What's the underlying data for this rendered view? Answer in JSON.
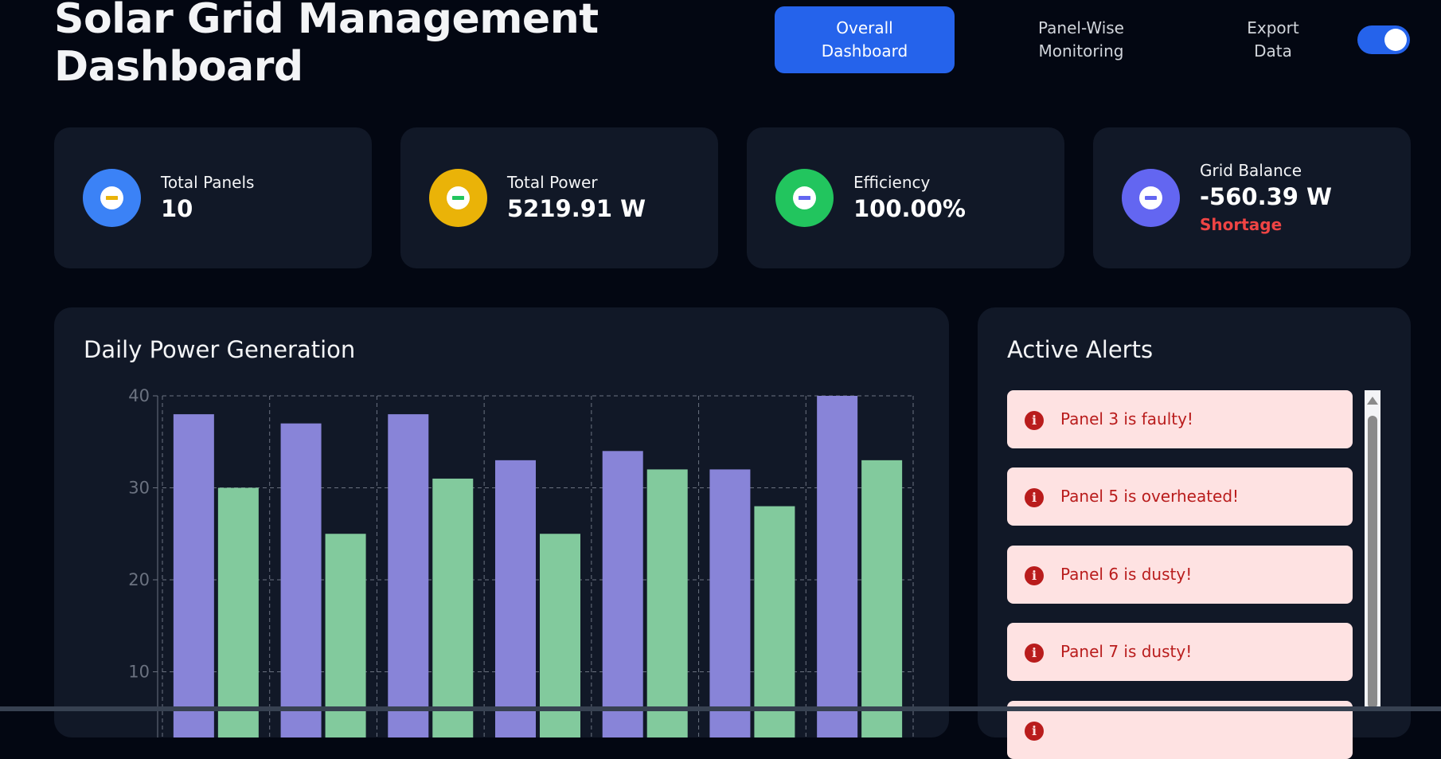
{
  "header": {
    "title": "Solar Grid Management Dashboard",
    "nav": [
      {
        "label": "Overall\nDashboard",
        "active": true
      },
      {
        "label": "Panel-Wise\nMonitoring",
        "active": false
      },
      {
        "label": "Export\nData",
        "active": false
      }
    ],
    "toggle_on": true
  },
  "stats": [
    {
      "label": "Total Panels",
      "value": "10",
      "icon": "minus-circle-icon",
      "color": "#3b82f6"
    },
    {
      "label": "Total Power",
      "value": "5219.91 W",
      "icon": "minus-circle-icon",
      "color": "#eab308"
    },
    {
      "label": "Efficiency",
      "value": "100.00%",
      "icon": "minus-circle-icon",
      "color": "#22c55e"
    },
    {
      "label": "Grid Balance",
      "value": "-560.39 W",
      "sub": "Shortage",
      "icon": "minus-circle-icon",
      "color": "#6366f1"
    }
  ],
  "chart_section": {
    "title": "Daily Power Generation"
  },
  "chart_data": {
    "type": "bar",
    "categories": [
      "",
      "",
      "",
      "",
      "",
      "",
      ""
    ],
    "series": [
      {
        "color": "#8884d8",
        "values": [
          38,
          37,
          38,
          33,
          34,
          32,
          40
        ]
      },
      {
        "color": "#82ca9d",
        "values": [
          30,
          25,
          31,
          25,
          32,
          28,
          33
        ]
      }
    ],
    "yticks": [
      10,
      20,
      30,
      40
    ],
    "ylim": [
      0,
      40
    ],
    "grid": true
  },
  "alerts": {
    "title": "Active Alerts",
    "items": [
      {
        "text": "Panel 3 is faulty!",
        "icon": "alert-circle-icon"
      },
      {
        "text": "Panel 5 is overheated!",
        "icon": "alert-circle-icon"
      },
      {
        "text": "Panel 6 is dusty!",
        "icon": "alert-circle-icon"
      },
      {
        "text": "Panel 7 is dusty!",
        "icon": "alert-circle-icon"
      },
      {
        "text": "",
        "icon": "alert-circle-icon"
      }
    ]
  }
}
